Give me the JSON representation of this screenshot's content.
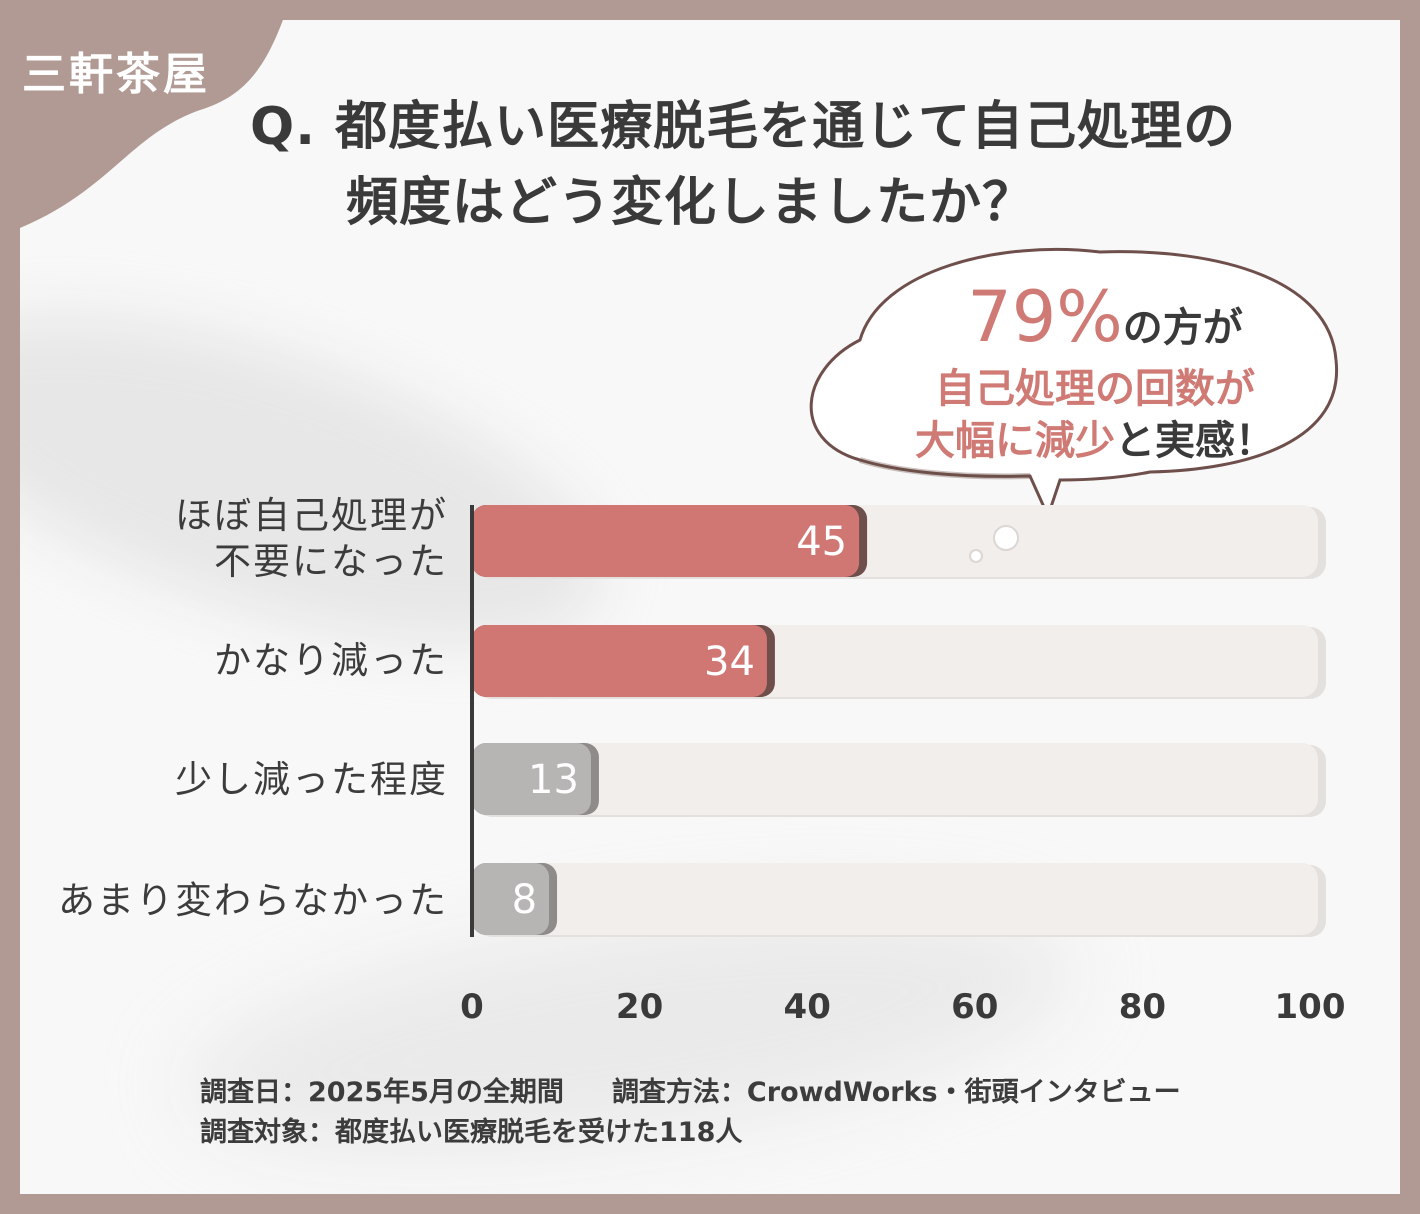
{
  "brand": "三軒茶屋",
  "question": {
    "line1": "Q. 都度払い医療脱毛を通じて自己処理の",
    "line2": "頻度はどう変化しましたか？"
  },
  "callout": {
    "percent": "79%",
    "line1_suffix": "の方が",
    "line2": "自己処理の回数が",
    "line3_highlight": "大幅に減少",
    "line3_suffix": "と実感！"
  },
  "chart_data": {
    "type": "bar",
    "orientation": "horizontal",
    "categories": [
      "ほぼ自己処理が\n不要になった",
      "かなり減った",
      "少し減った程度",
      "あまり変わらなかった"
    ],
    "values": [
      45,
      34,
      13,
      8
    ],
    "xlim": [
      0,
      100
    ],
    "xticks": [
      0,
      20,
      40,
      60,
      80,
      100
    ],
    "grid": false,
    "colors": {
      "highlight": "#d07773",
      "highlight_shadow": "#6e4f4b",
      "muted": "#b7b4b4",
      "muted_shadow": "#8f8b8a",
      "track": "#f1eeec"
    }
  },
  "labels": {
    "cat1_line1": "ほぼ自己処理が",
    "cat1_line2": "不要になった",
    "cat2": "かなり減った",
    "cat3": "少し減った程度",
    "cat4": "あまり変わらなかった"
  },
  "footer": {
    "date": "調査日：2025年5月の全期間",
    "method": "調査方法：CrowdWorks・街頭インタビュー",
    "target": "調査対象：都度払い医療脱毛を受けた118人"
  }
}
